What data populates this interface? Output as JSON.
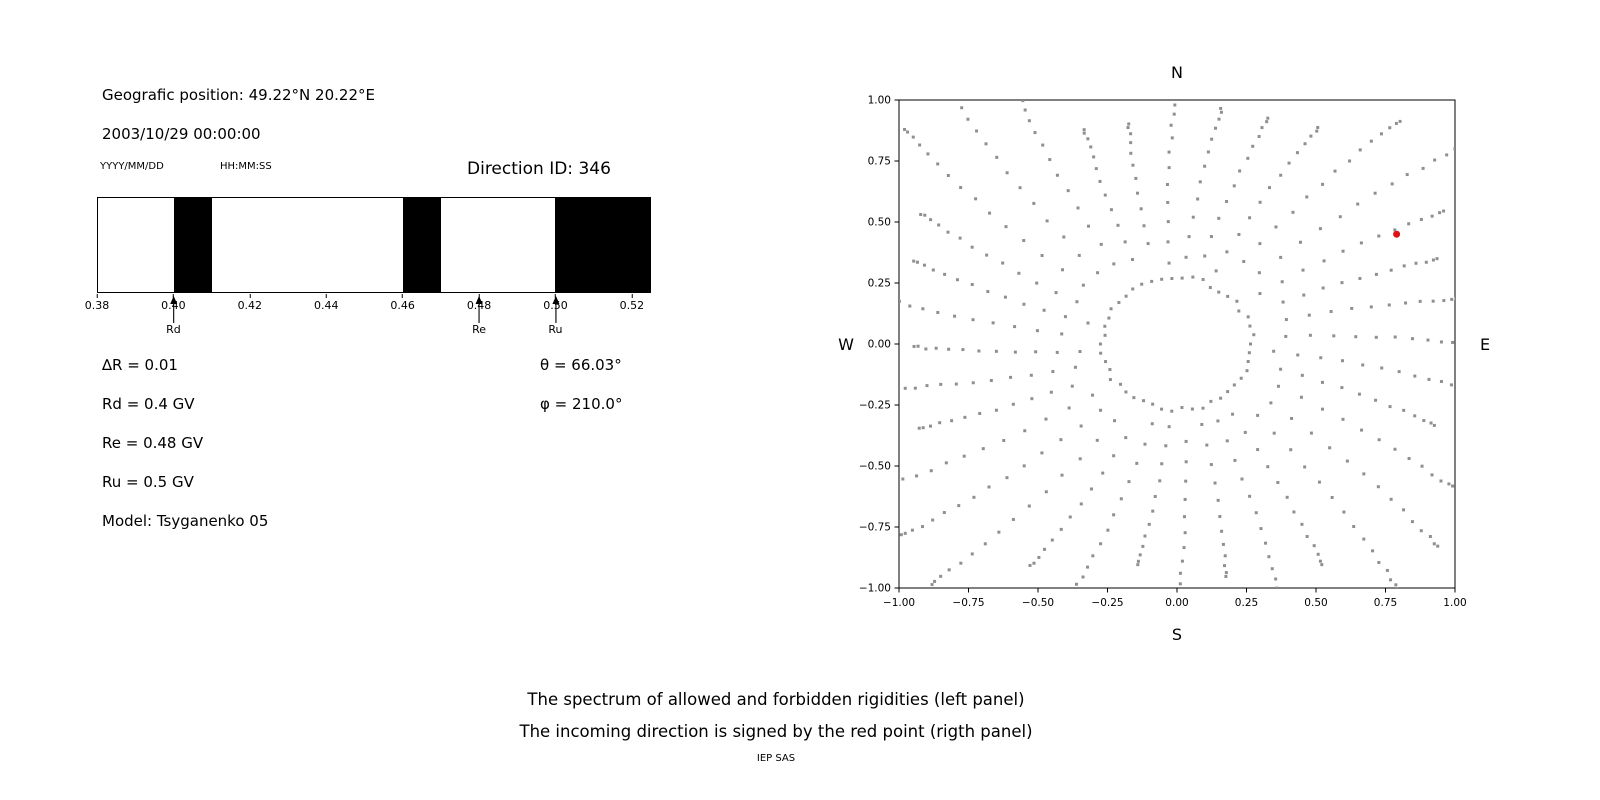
{
  "left_panel": {
    "geographic_position": "Geografic position: 49.22°N 20.22°E",
    "datetime": "2003/10/29 00:00:00",
    "date_format_label": "YYYY/MM/DD",
    "time_format_label": "HH:MM:SS",
    "direction_id": "Direction ID: 346",
    "params": {
      "delta_r": "∆R = 0.01",
      "rd": "Rd = 0.4 GV",
      "re": "Re = 0.48 GV",
      "ru": "Ru = 0.5 GV",
      "model": "Model: Tsyganenko 05",
      "theta": "θ = 66.03°",
      "phi": "φ = 210.0°"
    }
  },
  "caption": {
    "line1": "The spectrum of allowed and forbidden rigidities (left panel)",
    "line2": "The incoming direction is signed by the red point (rigth panel)",
    "credit": "IEP SAS"
  },
  "chart_data": [
    {
      "type": "bar",
      "name": "rigidity-spectrum",
      "title": "",
      "xlabel": "",
      "x_min": 0.38,
      "x_max": 0.525,
      "x_tick_values": [
        0.38,
        0.4,
        0.42,
        0.44,
        0.46,
        0.48,
        0.5,
        0.52
      ],
      "x_tick_labels": [
        "0.38",
        "0.40",
        "0.42",
        "0.44",
        "0.46",
        "0.48",
        "0.50",
        "0.52"
      ],
      "forbidden_bands": [
        [
          0.4,
          0.41
        ],
        [
          0.46,
          0.47
        ],
        [
          0.5,
          0.525
        ]
      ],
      "allowed_color": "#ffffff",
      "band_color": "#000000",
      "markers": [
        {
          "label": "Rd",
          "x": 0.4
        },
        {
          "label": "Re",
          "x": 0.48
        },
        {
          "label": "Ru",
          "x": 0.5
        }
      ]
    },
    {
      "type": "scatter",
      "name": "incoming-direction-map",
      "xlim": [
        -1,
        1
      ],
      "ylim": [
        -1,
        1
      ],
      "grid": false,
      "tick_values": [
        -1,
        -0.75,
        -0.5,
        -0.25,
        0,
        0.25,
        0.5,
        0.75,
        1
      ],
      "tick_labels": [
        "−1.00",
        "−0.75",
        "−0.50",
        "−0.25",
        "0.00",
        "0.25",
        "0.50",
        "0.75",
        "1.00"
      ],
      "compass": {
        "north": "N",
        "south": "S",
        "east": "E",
        "west": "W"
      },
      "dot_color": "#8f8f8f",
      "ring": {
        "radius": 0.27,
        "count": 46
      },
      "spokes": {
        "count": 36,
        "start_angle_deg": 0,
        "step_deg": 10,
        "r_start": 0.33,
        "curvature_deg": 7
      },
      "red_point": {
        "x": 0.79,
        "y": 0.45,
        "color": "#dd1111",
        "radius_px": 3.5
      }
    }
  ]
}
